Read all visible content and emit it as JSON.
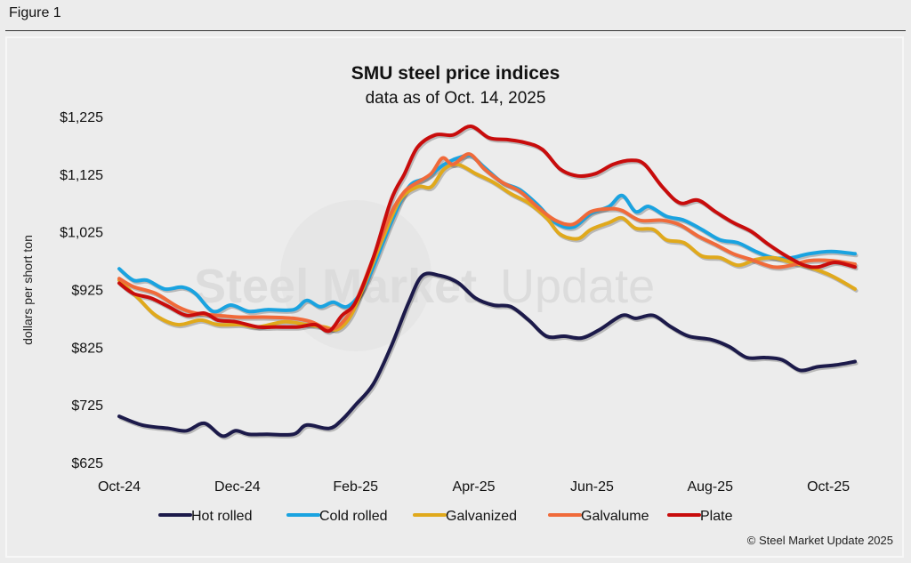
{
  "figure_label": "Figure 1",
  "watermark": {
    "bold": "Steel Market",
    "light": "Update"
  },
  "chart_data": {
    "type": "line",
    "title": "SMU steel price indices",
    "subtitle": "data as of Oct. 14, 2025",
    "xlabel": "",
    "ylabel": "dollars per short ton",
    "x_unit": "months since Oct 1, 2024",
    "xlim": [
      0,
      12.45
    ],
    "ylim": [
      625,
      1225
    ],
    "y_ticks": [
      625,
      725,
      825,
      925,
      1025,
      1125,
      1225
    ],
    "y_tick_labels": [
      "$625",
      "$725",
      "$825",
      "$925",
      "$1,025",
      "$1,125",
      "$1,225"
    ],
    "x_ticks": [
      0,
      2,
      4,
      6,
      8,
      10,
      12
    ],
    "x_tick_labels": [
      "Oct-24",
      "Dec-24",
      "Feb-25",
      "Apr-25",
      "Jun-25",
      "Aug-25",
      "Oct-25"
    ],
    "grid": false,
    "legend_position": "bottom",
    "credit": "© Steel Market Update 2025",
    "series": [
      {
        "name": "Hot rolled",
        "color": "#1c1a4a",
        "x": [
          0,
          0.39,
          0.84,
          1.14,
          1.44,
          1.74,
          1.97,
          2.19,
          2.5,
          2.95,
          3.17,
          3.55,
          3.77,
          4.0,
          4.3,
          4.6,
          4.9,
          5.13,
          5.43,
          5.73,
          6.03,
          6.33,
          6.63,
          6.93,
          7.23,
          7.53,
          7.83,
          8.14,
          8.51,
          8.74,
          9.04,
          9.34,
          9.64,
          10.02,
          10.32,
          10.62,
          10.92,
          11.22,
          11.52,
          11.82,
          12.12,
          12.45
        ],
        "values": [
          705,
          690,
          684,
          680,
          693,
          671,
          680,
          674,
          674,
          674,
          690,
          684,
          699,
          725,
          761,
          826,
          903,
          949,
          949,
          937,
          910,
          898,
          895,
          872,
          844,
          844,
          841,
          856,
          880,
          875,
          880,
          860,
          844,
          838,
          826,
          807,
          807,
          803,
          785,
          791,
          794,
          800
        ]
      },
      {
        "name": "Cold rolled",
        "color": "#1aa3e0",
        "x": [
          0,
          0.24,
          0.47,
          0.77,
          1.07,
          1.29,
          1.59,
          1.89,
          2.19,
          2.5,
          2.95,
          3.17,
          3.4,
          3.62,
          3.85,
          4.08,
          4.3,
          4.6,
          4.9,
          5.2,
          5.5,
          5.73,
          5.95,
          6.18,
          6.48,
          6.78,
          7.08,
          7.38,
          7.68,
          7.98,
          8.29,
          8.51,
          8.74,
          8.96,
          9.26,
          9.56,
          9.86,
          10.17,
          10.47,
          10.77,
          11.07,
          11.37,
          11.67,
          12.05,
          12.45
        ],
        "values": [
          961,
          941,
          941,
          926,
          929,
          918,
          887,
          898,
          887,
          890,
          890,
          906,
          895,
          903,
          895,
          918,
          964,
          1041,
          1103,
          1119,
          1142,
          1153,
          1157,
          1137,
          1111,
          1098,
          1072,
          1041,
          1033,
          1057,
          1069,
          1088,
          1060,
          1069,
          1052,
          1045,
          1029,
          1011,
          1006,
          991,
          980,
          980,
          987,
          991,
          987
        ]
      },
      {
        "name": "Galvanized",
        "color": "#e0a91c",
        "x": [
          0,
          0.32,
          0.62,
          0.99,
          1.37,
          1.67,
          2.05,
          2.35,
          2.8,
          3.17,
          3.47,
          3.7,
          3.92,
          4.15,
          4.45,
          4.75,
          5.05,
          5.28,
          5.5,
          5.73,
          6.03,
          6.33,
          6.63,
          6.93,
          7.23,
          7.46,
          7.76,
          7.98,
          8.29,
          8.51,
          8.74,
          9.04,
          9.26,
          9.56,
          9.86,
          10.17,
          10.47,
          10.77,
          11.07,
          11.37,
          11.67,
          12.05,
          12.45
        ],
        "values": [
          941,
          910,
          880,
          864,
          872,
          864,
          864,
          860,
          869,
          864,
          860,
          856,
          880,
          934,
          1011,
          1080,
          1103,
          1103,
          1134,
          1142,
          1126,
          1111,
          1091,
          1075,
          1049,
          1021,
          1013,
          1029,
          1041,
          1049,
          1031,
          1029,
          1011,
          1006,
          983,
          980,
          967,
          977,
          980,
          972,
          964,
          949,
          926
        ]
      },
      {
        "name": "Galvalume",
        "color": "#f06a3a",
        "x": [
          0,
          0.24,
          0.62,
          0.99,
          1.29,
          1.67,
          2.05,
          2.5,
          2.95,
          3.25,
          3.55,
          3.77,
          4.0,
          4.3,
          4.6,
          4.83,
          5.05,
          5.28,
          5.47,
          5.65,
          5.92,
          6.18,
          6.48,
          6.78,
          7.08,
          7.38,
          7.68,
          7.98,
          8.29,
          8.51,
          8.81,
          9.19,
          9.49,
          9.79,
          10.09,
          10.39,
          10.69,
          11.07,
          11.37,
          11.67,
          12.05,
          12.45
        ],
        "values": [
          944,
          930,
          918,
          895,
          884,
          880,
          877,
          877,
          875,
          869,
          856,
          867,
          903,
          980,
          1057,
          1095,
          1111,
          1126,
          1153,
          1142,
          1160,
          1134,
          1111,
          1095,
          1068,
          1045,
          1038,
          1060,
          1065,
          1062,
          1045,
          1045,
          1037,
          1018,
          1003,
          987,
          977,
          964,
          967,
          975,
          975,
          969
        ]
      },
      {
        "name": "Plate",
        "color": "#c80c0c",
        "x": [
          0,
          0.24,
          0.54,
          0.84,
          1.14,
          1.44,
          1.67,
          1.97,
          2.35,
          2.65,
          3.02,
          3.32,
          3.55,
          3.77,
          4.0,
          4.3,
          4.6,
          4.83,
          5.05,
          5.35,
          5.65,
          5.95,
          6.26,
          6.56,
          6.86,
          7.16,
          7.46,
          7.76,
          8.06,
          8.36,
          8.66,
          8.89,
          9.19,
          9.49,
          9.79,
          10.09,
          10.39,
          10.69,
          10.99,
          11.29,
          11.59,
          11.82,
          12.12,
          12.45
        ],
        "values": [
          936,
          918,
          910,
          895,
          880,
          884,
          872,
          869,
          860,
          860,
          860,
          864,
          853,
          880,
          903,
          980,
          1080,
          1126,
          1172,
          1193,
          1193,
          1208,
          1188,
          1185,
          1180,
          1168,
          1134,
          1122,
          1126,
          1142,
          1149,
          1142,
          1103,
          1075,
          1080,
          1060,
          1041,
          1026,
          1003,
          983,
          967,
          964,
          972,
          964
        ]
      }
    ]
  }
}
